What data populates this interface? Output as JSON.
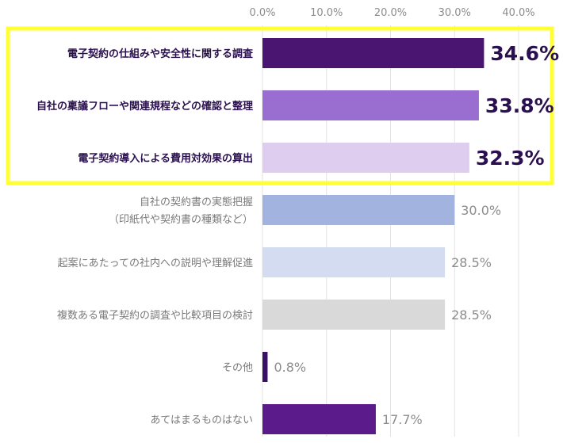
{
  "chart_data": {
    "type": "bar",
    "orientation": "horizontal",
    "title": "",
    "xlabel": "",
    "ylabel": "",
    "xlim": [
      0,
      40
    ],
    "x_ticks": [
      "0.0%",
      "10.0%",
      "20.0%",
      "30.0%",
      "40.0%"
    ],
    "x_tick_position": "top",
    "grid": true,
    "legend": "none",
    "highlight_color": "#ffff33",
    "bars": [
      {
        "label": [
          "電子契約の仕組みや安全性に関する調査"
        ],
        "value": 34.6,
        "value_label": "34.6%",
        "color": "#4a1570",
        "highlight": true
      },
      {
        "label": [
          "自社の稟議フローや関連規程などの確認と整理"
        ],
        "value": 33.8,
        "value_label": "33.8%",
        "color": "#9a6dd0",
        "highlight": true
      },
      {
        "label": [
          "電子契約導入による費用対効果の算出"
        ],
        "value": 32.3,
        "value_label": "32.3%",
        "color": "#decdee",
        "highlight": true
      },
      {
        "label": [
          "自社の契約書の実態把握",
          "（印紙代や契約書の種類など）"
        ],
        "value": 30.0,
        "value_label": "30.0%",
        "color": "#a3b3df",
        "highlight": false
      },
      {
        "label": [
          "起案にあたっての社内への説明や理解促進"
        ],
        "value": 28.5,
        "value_label": "28.5%",
        "color": "#d3dcf1",
        "highlight": false
      },
      {
        "label": [
          "複数ある電子契約の調査や比較項目の検討"
        ],
        "value": 28.5,
        "value_label": "28.5%",
        "color": "#d9d9d9",
        "highlight": false
      },
      {
        "label": [
          "その他"
        ],
        "value": 0.8,
        "value_label": "0.8%",
        "color": "#3a1066",
        "highlight": false
      },
      {
        "label": [
          "あてはまるものはない"
        ],
        "value": 17.7,
        "value_label": "17.7%",
        "color": "#5b1b8a",
        "highlight": false
      }
    ]
  }
}
